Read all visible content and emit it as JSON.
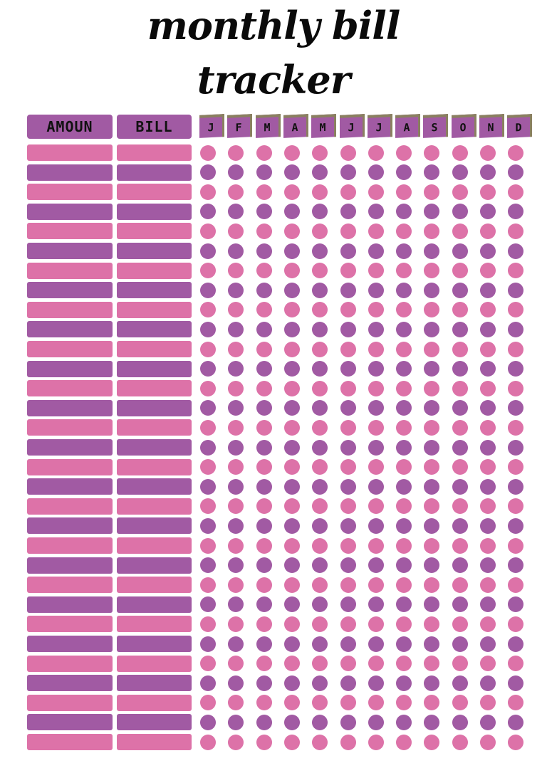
{
  "title": {
    "line1": "monthly bill",
    "line2": "tracker"
  },
  "headers": {
    "amount": "AMOUN",
    "bill": "BILL"
  },
  "months": [
    "J",
    "F",
    "M",
    "A",
    "M",
    "J",
    "J",
    "A",
    "S",
    "O",
    "N",
    "D"
  ],
  "row_count": 31,
  "colors": {
    "pink": "#dd72a8",
    "purple": "#a15aa3",
    "tab_edge": "#8a8060",
    "title": "#0a0a0a"
  }
}
